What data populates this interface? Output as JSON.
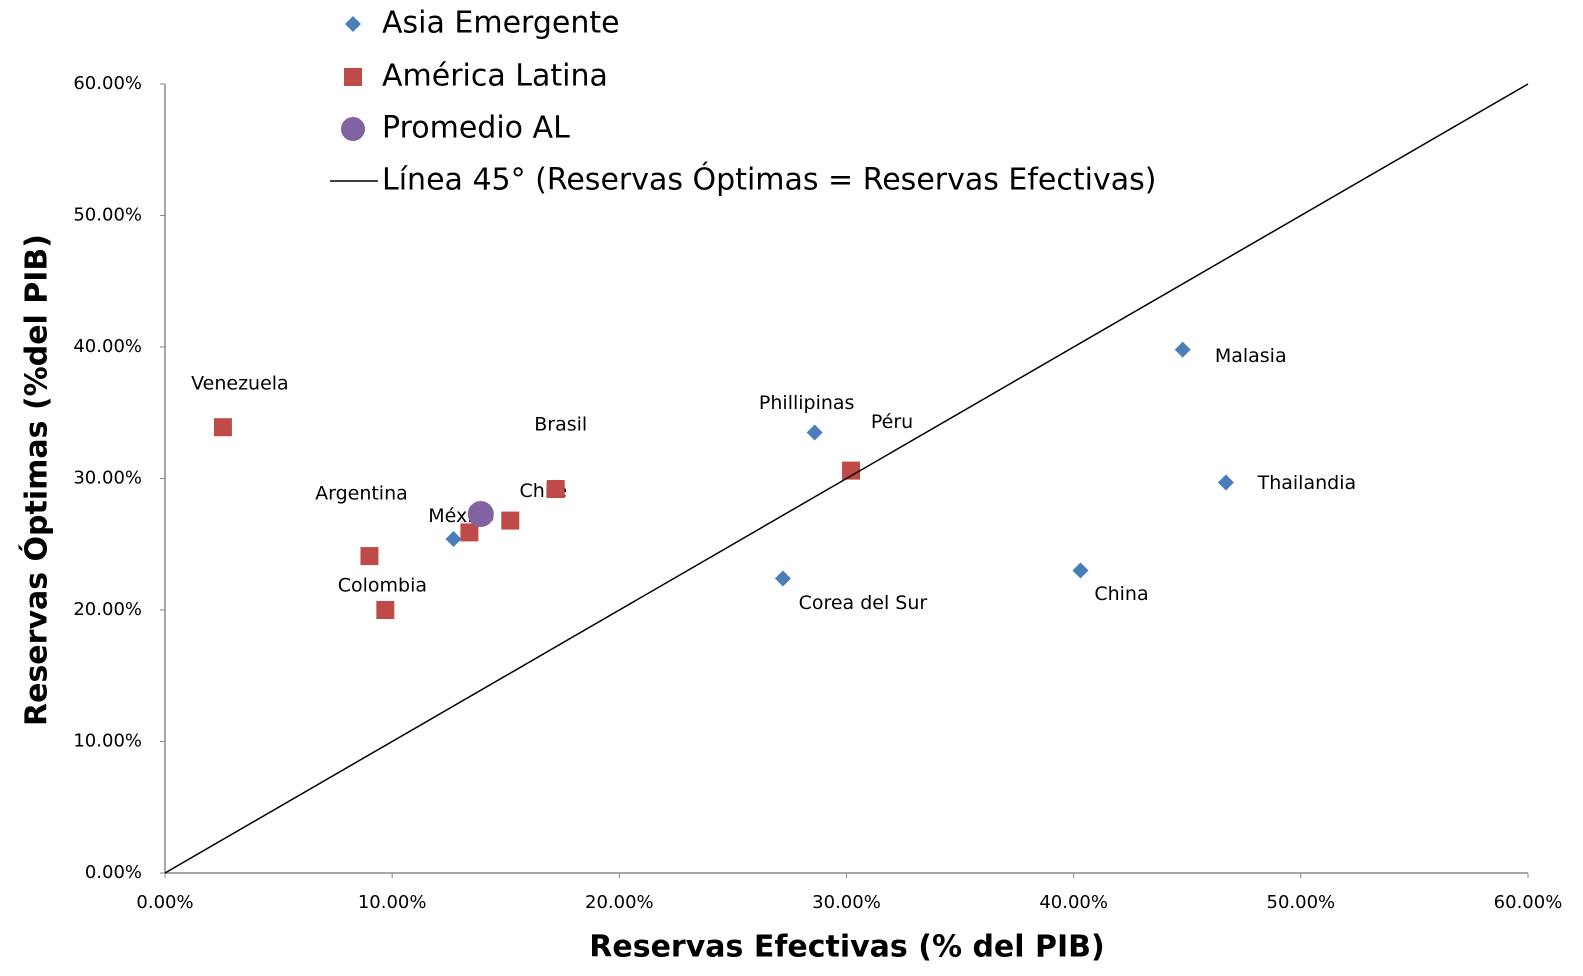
{
  "chart_data": {
    "type": "scatter",
    "x_label": "Reservas Efectivas (% del PIB)",
    "y_label": "Reservas Óptimas (%del PIB)",
    "xlim": [
      0,
      60
    ],
    "ylim": [
      0,
      60
    ],
    "xticks": [
      {
        "value": 0,
        "label": "0.00%"
      },
      {
        "value": 10,
        "label": "10.00%"
      },
      {
        "value": 20,
        "label": "20.00%"
      },
      {
        "value": 30,
        "label": "30.00%"
      },
      {
        "value": 40,
        "label": "40.00%"
      },
      {
        "value": 50,
        "label": "50.00%"
      },
      {
        "value": 60,
        "label": "60.00%"
      }
    ],
    "yticks": [
      {
        "value": 0,
        "label": "0.00%"
      },
      {
        "value": 10,
        "label": "10.00%"
      },
      {
        "value": 20,
        "label": "20.00%"
      },
      {
        "value": 30,
        "label": "30.00%"
      },
      {
        "value": 40,
        "label": "40.00%"
      },
      {
        "value": 50,
        "label": "50.00%"
      },
      {
        "value": 60,
        "label": "60.00%"
      }
    ],
    "series": [
      {
        "name": "Asia Emergente",
        "color": "#4a7ebb",
        "marker": "diamond",
        "x": [
          12.7,
          28.6,
          27.2,
          40.3,
          44.8,
          46.7
        ],
        "values": [
          25.4,
          33.5,
          22.4,
          23.0,
          39.8,
          29.7
        ],
        "labels": [
          null,
          "Phillipinas",
          "Corea del Sur",
          "China",
          "Malasia",
          "Thailandia"
        ]
      },
      {
        "name": "América Latina",
        "color": "#be4b48",
        "marker": "square",
        "x": [
          2.55,
          9.0,
          9.7,
          13.4,
          15.2,
          17.2,
          30.2
        ],
        "values": [
          33.9,
          24.1,
          20.0,
          25.9,
          26.8,
          29.2,
          30.6
        ],
        "labels": [
          "Venezuela",
          "Argentina",
          "Colombia",
          "México",
          "Chile",
          "Brasil",
          "Péru"
        ]
      },
      {
        "name": "Promedio AL",
        "color": "#8064a2",
        "marker": "circle",
        "x": [
          13.9
        ],
        "values": [
          27.3
        ]
      },
      {
        "name": "Línea 45° (Reservas Óptimas = Reservas Efectivas)",
        "color": "#000000",
        "marker": "line",
        "x": [
          0,
          60
        ],
        "values": [
          0,
          60
        ]
      }
    ]
  }
}
